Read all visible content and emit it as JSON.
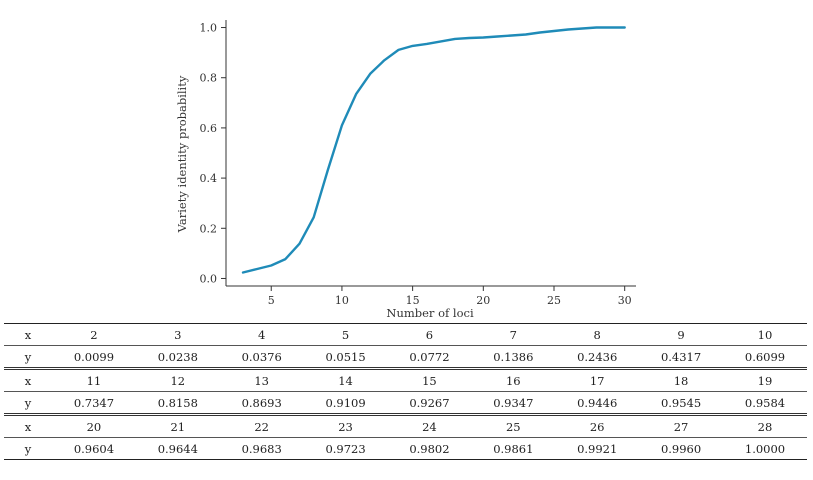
{
  "chart_data": {
    "type": "line",
    "xlabel": "Number of loci",
    "ylabel": "Variety identity probability",
    "xlim": [
      1.8,
      30.8
    ],
    "ylim": [
      -0.03,
      1.03
    ],
    "xticks": [
      5,
      10,
      15,
      20,
      25,
      30
    ],
    "yticks": [
      "0.0",
      "0.2",
      "0.4",
      "0.6",
      "0.8",
      "1.0"
    ],
    "grid": false,
    "line_color": "#1f8bb8",
    "x": [
      3,
      4,
      5,
      6,
      7,
      8,
      9,
      10,
      11,
      12,
      13,
      14,
      15,
      16,
      17,
      18,
      19,
      20,
      21,
      22,
      23,
      24,
      25,
      26,
      27,
      28,
      29,
      30
    ],
    "y": [
      0.0238,
      0.0376,
      0.0515,
      0.0772,
      0.1386,
      0.2436,
      0.4317,
      0.6099,
      0.7347,
      0.8158,
      0.8693,
      0.9109,
      0.9267,
      0.9347,
      0.9446,
      0.9545,
      0.9584,
      0.9604,
      0.9644,
      0.9683,
      0.9723,
      0.9802,
      0.9861,
      0.9921,
      0.996,
      1.0,
      1.0,
      1.0
    ]
  },
  "table": {
    "row_label_x": "x",
    "row_label_y": "y",
    "blocks": [
      {
        "x": [
          "2",
          "3",
          "4",
          "5",
          "6",
          "7",
          "8",
          "9",
          "10"
        ],
        "y": [
          "0.0099",
          "0.0238",
          "0.0376",
          "0.0515",
          "0.0772",
          "0.1386",
          "0.2436",
          "0.4317",
          "0.6099"
        ]
      },
      {
        "x": [
          "11",
          "12",
          "13",
          "14",
          "15",
          "16",
          "17",
          "18",
          "19"
        ],
        "y": [
          "0.7347",
          "0.8158",
          "0.8693",
          "0.9109",
          "0.9267",
          "0.9347",
          "0.9446",
          "0.9545",
          "0.9584"
        ]
      },
      {
        "x": [
          "20",
          "21",
          "22",
          "23",
          "24",
          "25",
          "26",
          "27",
          "28"
        ],
        "y": [
          "0.9604",
          "0.9644",
          "0.9683",
          "0.9723",
          "0.9802",
          "0.9861",
          "0.9921",
          "0.9960",
          "1.0000"
        ]
      }
    ]
  }
}
